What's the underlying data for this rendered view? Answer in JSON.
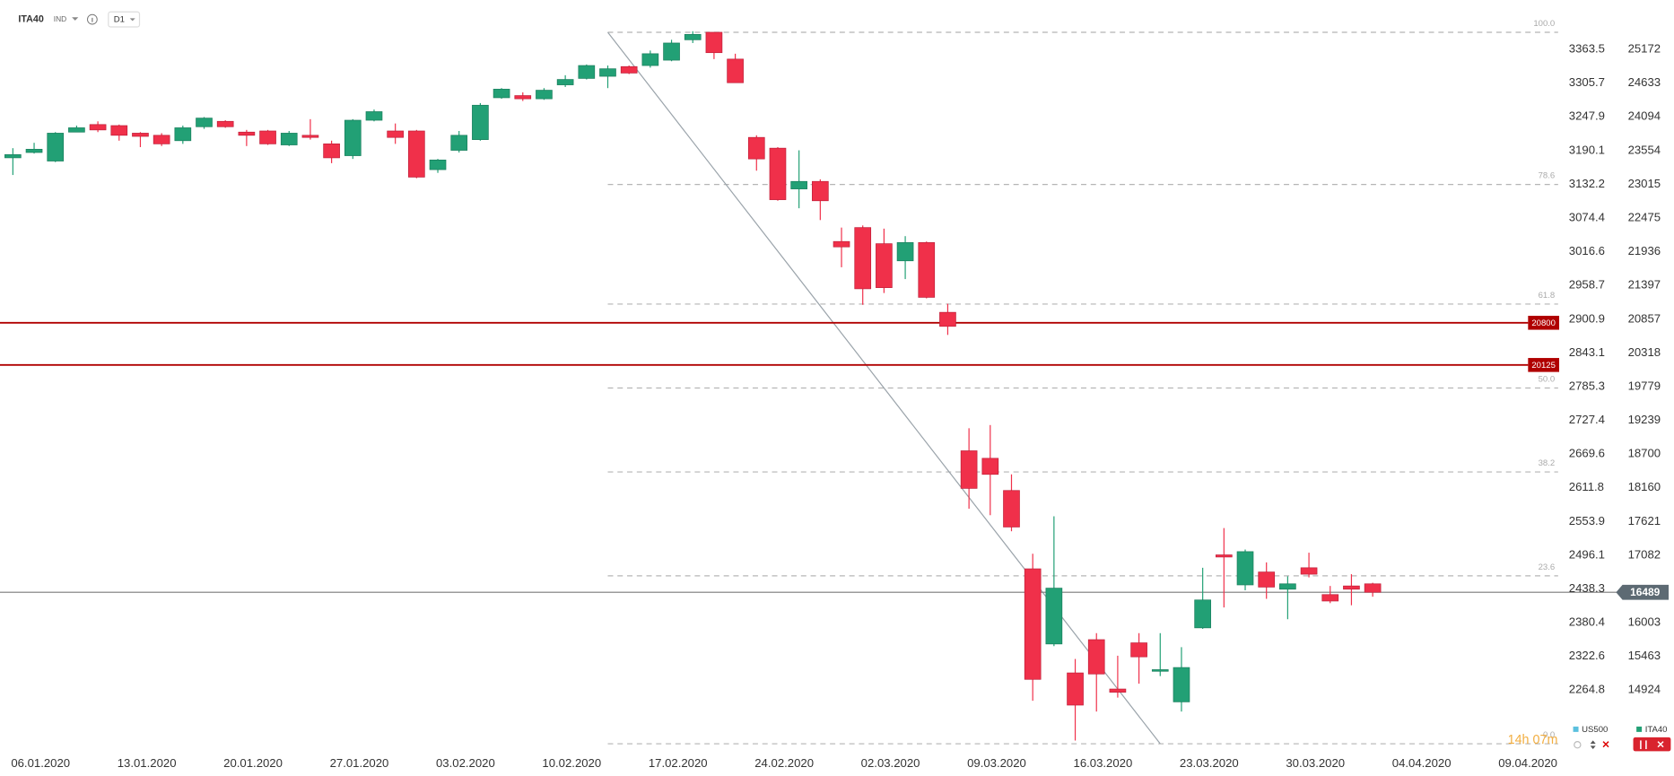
{
  "chart_data": {
    "type": "candlestick",
    "symbol": "ITA40",
    "market": "IND",
    "timeframe": "D1",
    "categories": [
      null,
      "06.01.2020",
      null,
      null,
      null,
      null,
      "13.01.2020",
      null,
      null,
      null,
      null,
      "20.01.2020",
      null,
      null,
      null,
      null,
      "27.01.2020",
      null,
      null,
      null,
      null,
      "03.02.2020",
      null,
      null,
      null,
      null,
      "10.02.2020",
      null,
      null,
      null,
      null,
      "17.02.2020",
      null,
      null,
      null,
      null,
      "24.02.2020",
      null,
      null,
      null,
      null,
      "02.03.2020",
      null,
      null,
      null,
      null,
      "09.03.2020",
      null,
      null,
      null,
      null,
      "16.03.2020",
      null,
      null,
      null,
      null,
      "23.03.2020",
      null,
      null,
      null,
      null,
      "30.03.2020",
      null,
      null,
      null,
      null,
      "04.04.2020",
      null,
      null,
      null,
      null,
      "09.04.2020"
    ],
    "series": [
      {
        "name": "ITA40",
        "up_color": "#22a075",
        "down_color": "#f0304a",
        "open": [
          23439,
          23524,
          23387,
          23850,
          23971,
          23954,
          23833,
          23799,
          23713,
          23936,
          24022,
          23850,
          23868,
          23645,
          23799,
          23662,
          23473,
          24040,
          23868,
          23868,
          23250,
          23559,
          23730,
          24400,
          24434,
          24383,
          24606,
          24709,
          24743,
          24898,
          24915,
          25001,
          25327,
          25447,
          25018,
          23765,
          23593,
          22941,
          23061,
          22100,
          22323,
          22065,
          21791,
          22083,
          20967,
          18752,
          18632,
          18117,
          16864,
          15662,
          15199,
          15731,
          14941,
          15680,
          15233,
          14736,
          15920,
          17087,
          16607,
          16813,
          16538,
          16881,
          16452,
          16590,
          16624,
          null,
          null,
          null,
          null,
          null,
          null,
          null
        ],
        "high": [
          23593,
          23679,
          23850,
          23954,
          24022,
          23971,
          23850,
          23833,
          23954,
          24091,
          24040,
          23885,
          23885,
          23868,
          24057,
          23713,
          24057,
          24211,
          23988,
          23885,
          23421,
          23868,
          24314,
          24554,
          24486,
          24554,
          24760,
          24932,
          24915,
          24915,
          25155,
          25327,
          25464,
          25447,
          25104,
          23799,
          23610,
          23559,
          23095,
          22323,
          22357,
          22306,
          22186,
          22100,
          21104,
          19113,
          19164,
          18375,
          17105,
          17705,
          15422,
          15835,
          15474,
          15835,
          15835,
          15611,
          16881,
          17516,
          17173,
          16967,
          16744,
          17122,
          16590,
          16778,
          16641,
          null,
          null,
          null,
          null,
          null,
          null,
          null
        ],
        "low": [
          23164,
          23507,
          23370,
          23850,
          23850,
          23713,
          23610,
          23627,
          23662,
          23902,
          23919,
          23627,
          23645,
          23627,
          23730,
          23353,
          23421,
          24022,
          23662,
          23112,
          23198,
          23524,
          23713,
          24383,
          24348,
          24366,
          24572,
          24692,
          24554,
          24778,
          24881,
          24984,
          25275,
          25018,
          24640,
          23233,
          22752,
          22632,
          22443,
          21688,
          21087,
          21276,
          21499,
          21190,
          20606,
          17825,
          17722,
          17465,
          14753,
          15628,
          14117,
          14581,
          14804,
          15027,
          15148,
          14581,
          15903,
          16246,
          16521,
          16384,
          16058,
          16727,
          16315,
          16281,
          16418,
          null,
          null,
          null,
          null,
          null,
          null,
          null
        ],
        "close": [
          23490,
          23576,
          23833,
          23919,
          23885,
          23799,
          23782,
          23662,
          23919,
          24074,
          23936,
          23799,
          23662,
          23833,
          23765,
          23439,
          24040,
          24177,
          23765,
          23130,
          23404,
          23799,
          24280,
          24537,
          24383,
          24520,
          24692,
          24915,
          24863,
          24795,
          25104,
          25275,
          25413,
          25121,
          24640,
          23421,
          22769,
          23061,
          22752,
          22014,
          21344,
          21362,
          22083,
          21207,
          20743,
          18151,
          18375,
          17533,
          15096,
          16555,
          14684,
          15182,
          14890,
          15456,
          15251,
          15285,
          16366,
          17053,
          17139,
          16572,
          16624,
          16778,
          16349,
          16538,
          16489,
          null,
          null,
          null,
          null,
          null,
          null,
          null
        ]
      }
    ],
    "ylim": [
      13946,
      25962
    ],
    "yticks": [
      25172,
      24633,
      24094,
      23554,
      23015,
      22475,
      21936,
      21397,
      20857,
      20318,
      19779,
      19239,
      18700,
      18160,
      17621,
      17082,
      16003,
      15463,
      14924
    ],
    "y2_series": {
      "name": "US500",
      "color": "#5bc0de"
    },
    "y2lim": [
      2159.9,
      3448.2
    ],
    "y2ticks": [
      3363.5,
      3305.7,
      3247.9,
      3190.1,
      3132.2,
      3074.4,
      3016.6,
      2958.7,
      2900.9,
      2843.1,
      2785.3,
      2727.4,
      2669.6,
      2611.8,
      2553.9,
      2496.1,
      2438.3,
      2380.4,
      2322.6,
      2264.8
    ],
    "horizontal_lines": [
      {
        "value": 20800,
        "color": "#b00000"
      },
      {
        "value": 20125,
        "color": "#b00000"
      }
    ],
    "last_price": 16489,
    "fib_levels": [
      {
        "value": 25447,
        "label": "100.0"
      },
      {
        "value": 23012,
        "label": "78.6"
      },
      {
        "value": 21099,
        "label": "61.8"
      },
      {
        "value": 19757,
        "label": "50.0"
      },
      {
        "value": 18414,
        "label": "38.2"
      },
      {
        "value": 16752,
        "label": "23.6"
      },
      {
        "value": 14066,
        "label": "0.0"
      }
    ],
    "countdown": "14h 07m"
  }
}
